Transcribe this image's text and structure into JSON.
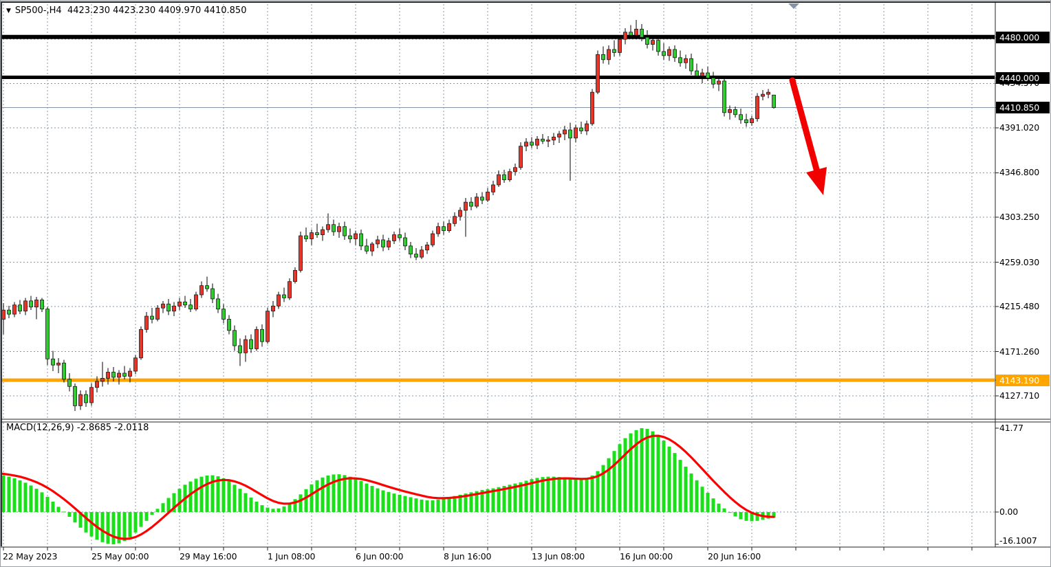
{
  "header": {
    "symbol": "SP500-",
    "timeframe": "H4",
    "open": "4423.230",
    "high": "4423.230",
    "low": "4409.970",
    "close": "4410.850",
    "display": "SP500-,H4  4423.230 4423.230 4409.970 4410.850",
    "dropdown_glyph": "▼"
  },
  "macd_panel": {
    "indicator": "MACD",
    "params": "12,26,9",
    "main_value": "-2.8685",
    "signal_value": "-2.0118",
    "display": "MACD(12,26,9) -2.8685 -2.0118",
    "scale_top": "41.77",
    "scale_zero": "0.00",
    "scale_bottom": "-16.1007"
  },
  "price_axis": {
    "plain_ticks": [
      {
        "label": "4434.570",
        "value": 4434.57,
        "partially_hidden": true
      },
      {
        "label": "4391.020",
        "value": 4391.02
      },
      {
        "label": "4346.800",
        "value": 4346.8
      },
      {
        "label": "4303.250",
        "value": 4303.25
      },
      {
        "label": "4259.030",
        "value": 4259.03
      },
      {
        "label": "4215.480",
        "value": 4215.48
      },
      {
        "label": "4171.260",
        "value": 4171.26
      },
      {
        "label": "4127.710",
        "value": 4127.71
      }
    ],
    "badges": [
      {
        "label": "4480.000",
        "value": 4480.0,
        "bg": "#000000",
        "meaning": "resistance-level"
      },
      {
        "label": "4440.000",
        "value": 4440.0,
        "bg": "#000000",
        "meaning": "resistance-level"
      },
      {
        "label": "4410.850",
        "value": 4410.85,
        "bg": "#000000",
        "meaning": "current-price"
      },
      {
        "label": "4143.190",
        "value": 4143.19,
        "bg": "#FFA500",
        "meaning": "support-level"
      }
    ]
  },
  "time_axis": {
    "labels": [
      "22 May 2023",
      "25 May 00:00",
      "29 May 16:00",
      "1 Jun 08:00",
      "6 Jun 00:00",
      "8 Jun 16:00",
      "13 Jun 08:00",
      "16 Jun 00:00",
      "20 Jun 16:00"
    ]
  },
  "levels": {
    "resistance_upper": 4480.0,
    "resistance_lower": 4440.0,
    "current_price": 4410.85,
    "support_orange": 4143.19
  },
  "annotations": {
    "trend_arrow": {
      "shape": "arrow",
      "direction": "down-right",
      "color": "#f20000"
    },
    "shift_marker": {
      "shape": "triangle-down",
      "color": "#8494a8"
    }
  },
  "colors": {
    "background": "#ffffff",
    "grid": "#8494a8",
    "candle_up": "#e8352a",
    "candle_down": "#2ecc2e",
    "candle_outline": "#1a1a1a",
    "wick": "#000000",
    "macd_histogram": "#19e019",
    "macd_signal": "#ff0000",
    "level_black": "#000000",
    "level_orange": "#FFA500",
    "current_price_line": "#8494a8",
    "arrow_red": "#f20000",
    "badge_text": "#ffffff"
  },
  "chart_data": {
    "type": "candlestick",
    "title": "SP500-,H4",
    "symbol": "SP500-",
    "timeframe": "H4",
    "grid": "dashed",
    "ylim": [
      4106,
      4500
    ],
    "y_ticks": [
      4434.57,
      4391.02,
      4346.8,
      4303.25,
      4259.03,
      4215.48,
      4171.26,
      4127.71
    ],
    "x_tick_labels": [
      "22 May 2023",
      "25 May 00:00",
      "29 May 16:00",
      "1 Jun 08:00",
      "6 Jun 00:00",
      "8 Jun 16:00",
      "13 Jun 08:00",
      "16 Jun 00:00",
      "20 Jun 16:00"
    ],
    "current_ohlc": {
      "open": 4423.23,
      "high": 4423.23,
      "low": 4409.97,
      "close": 4410.85
    },
    "horizontal_lines": [
      {
        "value": 4480.0,
        "color": "#000000",
        "width": 6
      },
      {
        "value": 4440.0,
        "color": "#000000",
        "width": 5
      },
      {
        "value": 4410.85,
        "color": "#8494a8",
        "width": 1
      },
      {
        "value": 4143.19,
        "color": "#FFA500",
        "width": 5
      }
    ],
    "candles_ohlc": [
      [
        4207,
        4213,
        4196,
        4203
      ],
      [
        4203,
        4219,
        4188,
        4212
      ],
      [
        4212,
        4216,
        4204,
        4208
      ],
      [
        4208,
        4220,
        4205,
        4217
      ],
      [
        4217,
        4222,
        4208,
        4211
      ],
      [
        4211,
        4224,
        4207,
        4221
      ],
      [
        4221,
        4226,
        4212,
        4215
      ],
      [
        4215,
        4225,
        4203,
        4222
      ],
      [
        4222,
        4224,
        4210,
        4213
      ],
      [
        4213,
        4215,
        4158,
        4164
      ],
      [
        4164,
        4172,
        4152,
        4158
      ],
      [
        4158,
        4165,
        4150,
        4160
      ],
      [
        4160,
        4163,
        4141,
        4144
      ],
      [
        4144,
        4150,
        4132,
        4137
      ],
      [
        4137,
        4140,
        4113,
        4118
      ],
      [
        4118,
        4133,
        4114,
        4129
      ],
      [
        4129,
        4133,
        4117,
        4121
      ],
      [
        4121,
        4140,
        4118,
        4136
      ],
      [
        4136,
        4147,
        4131,
        4142
      ],
      [
        4142,
        4161,
        4137,
        4145
      ],
      [
        4145,
        4155,
        4139,
        4151
      ],
      [
        4151,
        4156,
        4142,
        4146
      ],
      [
        4146,
        4153,
        4139,
        4150
      ],
      [
        4150,
        4157,
        4144,
        4147
      ],
      [
        4147,
        4155,
        4141,
        4152
      ],
      [
        4152,
        4168,
        4149,
        4165
      ],
      [
        4165,
        4196,
        4163,
        4193
      ],
      [
        4193,
        4210,
        4190,
        4206
      ],
      [
        4206,
        4214,
        4199,
        4203
      ],
      [
        4203,
        4217,
        4201,
        4214
      ],
      [
        4214,
        4221,
        4209,
        4218
      ],
      [
        4218,
        4223,
        4207,
        4211
      ],
      [
        4211,
        4220,
        4206,
        4216
      ],
      [
        4216,
        4224,
        4212,
        4220
      ],
      [
        4220,
        4226,
        4214,
        4217
      ],
      [
        4217,
        4223,
        4210,
        4213
      ],
      [
        4213,
        4230,
        4211,
        4227
      ],
      [
        4227,
        4240,
        4224,
        4236
      ],
      [
        4236,
        4245,
        4230,
        4233
      ],
      [
        4233,
        4238,
        4219,
        4223
      ],
      [
        4223,
        4228,
        4209,
        4213
      ],
      [
        4213,
        4218,
        4199,
        4203
      ],
      [
        4203,
        4207,
        4188,
        4192
      ],
      [
        4192,
        4197,
        4172,
        4177
      ],
      [
        4177,
        4184,
        4157,
        4170
      ],
      [
        4170,
        4187,
        4161,
        4183
      ],
      [
        4183,
        4188,
        4170,
        4174
      ],
      [
        4174,
        4196,
        4172,
        4193
      ],
      [
        4193,
        4198,
        4176,
        4181
      ],
      [
        4181,
        4214,
        4179,
        4211
      ],
      [
        4211,
        4221,
        4205,
        4216
      ],
      [
        4216,
        4230,
        4213,
        4227
      ],
      [
        4227,
        4234,
        4220,
        4224
      ],
      [
        4224,
        4243,
        4222,
        4240
      ],
      [
        4240,
        4254,
        4238,
        4251
      ],
      [
        4251,
        4289,
        4249,
        4285
      ],
      [
        4285,
        4293,
        4279,
        4282
      ],
      [
        4282,
        4291,
        4276,
        4288
      ],
      [
        4288,
        4297,
        4283,
        4286
      ],
      [
        4286,
        4294,
        4280,
        4291
      ],
      [
        4291,
        4307,
        4288,
        4296
      ],
      [
        4296,
        4301,
        4285,
        4289
      ],
      [
        4289,
        4298,
        4283,
        4294
      ],
      [
        4294,
        4299,
        4281,
        4285
      ],
      [
        4285,
        4292,
        4278,
        4282
      ],
      [
        4282,
        4290,
        4276,
        4287
      ],
      [
        4287,
        4291,
        4271,
        4275
      ],
      [
        4275,
        4282,
        4267,
        4270
      ],
      [
        4270,
        4279,
        4265,
        4277
      ],
      [
        4277,
        4285,
        4273,
        4281
      ],
      [
        4281,
        4286,
        4270,
        4274
      ],
      [
        4274,
        4283,
        4271,
        4280
      ],
      [
        4280,
        4289,
        4277,
        4286
      ],
      [
        4286,
        4292,
        4280,
        4283
      ],
      [
        4283,
        4288,
        4271,
        4275
      ],
      [
        4275,
        4279,
        4263,
        4267
      ],
      [
        4267,
        4273,
        4261,
        4264
      ],
      [
        4264,
        4275,
        4262,
        4271
      ],
      [
        4271,
        4279,
        4267,
        4276
      ],
      [
        4276,
        4290,
        4274,
        4287
      ],
      [
        4287,
        4298,
        4284,
        4294
      ],
      [
        4294,
        4299,
        4286,
        4290
      ],
      [
        4290,
        4301,
        4288,
        4297
      ],
      [
        4297,
        4308,
        4294,
        4304
      ],
      [
        4304,
        4313,
        4300,
        4310
      ],
      [
        4310,
        4322,
        4284,
        4318
      ],
      [
        4318,
        4323,
        4310,
        4314
      ],
      [
        4314,
        4327,
        4312,
        4323
      ],
      [
        4323,
        4328,
        4316,
        4320
      ],
      [
        4320,
        4332,
        4318,
        4328
      ],
      [
        4328,
        4339,
        4325,
        4335
      ],
      [
        4335,
        4349,
        4333,
        4345
      ],
      [
        4345,
        4350,
        4337,
        4340
      ],
      [
        4340,
        4351,
        4338,
        4348
      ],
      [
        4348,
        4356,
        4344,
        4352
      ],
      [
        4352,
        4377,
        4350,
        4373
      ],
      [
        4373,
        4381,
        4368,
        4377
      ],
      [
        4377,
        4382,
        4371,
        4374
      ],
      [
        4374,
        4383,
        4370,
        4380
      ],
      [
        4380,
        4385,
        4375,
        4378
      ],
      [
        4378,
        4383,
        4372,
        4379
      ],
      [
        4379,
        4386,
        4374,
        4382
      ],
      [
        4382,
        4388,
        4376,
        4385
      ],
      [
        4385,
        4393,
        4379,
        4389
      ],
      [
        4389,
        4396,
        4339,
        4381
      ],
      [
        4381,
        4394,
        4377,
        4391
      ],
      [
        4391,
        4397,
        4385,
        4388
      ],
      [
        4388,
        4398,
        4384,
        4395
      ],
      [
        4395,
        4429,
        4393,
        4426
      ],
      [
        4426,
        4467,
        4424,
        4463
      ],
      [
        4463,
        4471,
        4454,
        4458
      ],
      [
        4458,
        4472,
        4453,
        4468
      ],
      [
        4468,
        4477,
        4461,
        4465
      ],
      [
        4465,
        4482,
        4462,
        4478
      ],
      [
        4478,
        4489,
        4473,
        4485
      ],
      [
        4485,
        4492,
        4479,
        4482
      ],
      [
        4482,
        4497,
        4478,
        4488
      ],
      [
        4488,
        4493,
        4476,
        4480
      ],
      [
        4480,
        4487,
        4469,
        4473
      ],
      [
        4473,
        4482,
        4467,
        4477
      ],
      [
        4477,
        4481,
        4462,
        4466
      ],
      [
        4466,
        4474,
        4458,
        4462
      ],
      [
        4462,
        4471,
        4457,
        4468
      ],
      [
        4468,
        4472,
        4456,
        4460
      ],
      [
        4460,
        4467,
        4451,
        4455
      ],
      [
        4455,
        4463,
        4449,
        4459
      ],
      [
        4459,
        4464,
        4443,
        4447
      ],
      [
        4447,
        4454,
        4439,
        4442
      ],
      [
        4442,
        4449,
        4435,
        4445
      ],
      [
        4445,
        4451,
        4437,
        4440
      ],
      [
        4440,
        4446,
        4430,
        4434
      ],
      [
        4434,
        4441,
        4427,
        4437
      ],
      [
        4437,
        4439,
        4402,
        4406
      ],
      [
        4406,
        4413,
        4399,
        4409
      ],
      [
        4409,
        4412,
        4401,
        4404
      ],
      [
        4404,
        4410,
        4395,
        4399
      ],
      [
        4399,
        4405,
        4392,
        4396
      ],
      [
        4396,
        4403,
        4393,
        4400
      ],
      [
        4400,
        4425,
        4397,
        4422
      ],
      [
        4422,
        4428,
        4418,
        4424
      ],
      [
        4424,
        4429,
        4420,
        4426
      ],
      [
        4423.23,
        4423.23,
        4409.97,
        4410.85
      ]
    ],
    "macd": {
      "type": "histogram+line",
      "params": [
        12,
        26,
        9
      ],
      "last_main": -2.8685,
      "last_signal": -2.0118,
      "scale": {
        "max": 41.77,
        "zero": 0.0,
        "min": -16.1007
      },
      "histogram": [
        18.5,
        18.2,
        17.6,
        16.8,
        15.8,
        14.6,
        13.2,
        11.6,
        9.8,
        7.6,
        5.2,
        2.6,
        0.2,
        -2.4,
        -5.2,
        -7.8,
        -10.2,
        -12.2,
        -13.8,
        -15,
        -15.8,
        -16.1,
        -15.6,
        -14.4,
        -12.6,
        -10.2,
        -7.4,
        -4.4,
        -1.4,
        1.6,
        4.4,
        7,
        9.4,
        11.6,
        13.6,
        15.2,
        16.6,
        17.6,
        18.2,
        18.3,
        17.8,
        16.8,
        15.4,
        13.6,
        11.6,
        9.4,
        7.2,
        5.2,
        3.4,
        2.2,
        1.6,
        1.8,
        2.8,
        4.4,
        6.4,
        8.8,
        11.4,
        13.8,
        15.8,
        17.2,
        18.2,
        18.7,
        18.8,
        18.4,
        17.6,
        16.6,
        15.4,
        14.2,
        13,
        11.8,
        10.8,
        10,
        9.2,
        8.6,
        8,
        7.4,
        6.8,
        6.2,
        5.8,
        5.8,
        6.2,
        6.8,
        7.4,
        8,
        8.6,
        9.2,
        9.8,
        10.4,
        11,
        11.4,
        11.8,
        12.4,
        13,
        13.6,
        14.2,
        14.8,
        15.6,
        16.4,
        17,
        17.4,
        17.6,
        17.6,
        17.4,
        17,
        16.6,
        16.2,
        16.2,
        16.8,
        18.2,
        20.4,
        23.4,
        26.8,
        30.4,
        33.8,
        36.8,
        39.2,
        40.8,
        41.77,
        41.4,
        40.2,
        38.2,
        35.6,
        32.6,
        29.4,
        26,
        22.6,
        19.2,
        15.8,
        12.6,
        9.6,
        6.8,
        4.2,
        1.8,
        -0.4,
        -2.2,
        -3.6,
        -4.4,
        -4.6,
        -4.4,
        -3.9,
        -3.3,
        -2.8685
      ]
    }
  }
}
